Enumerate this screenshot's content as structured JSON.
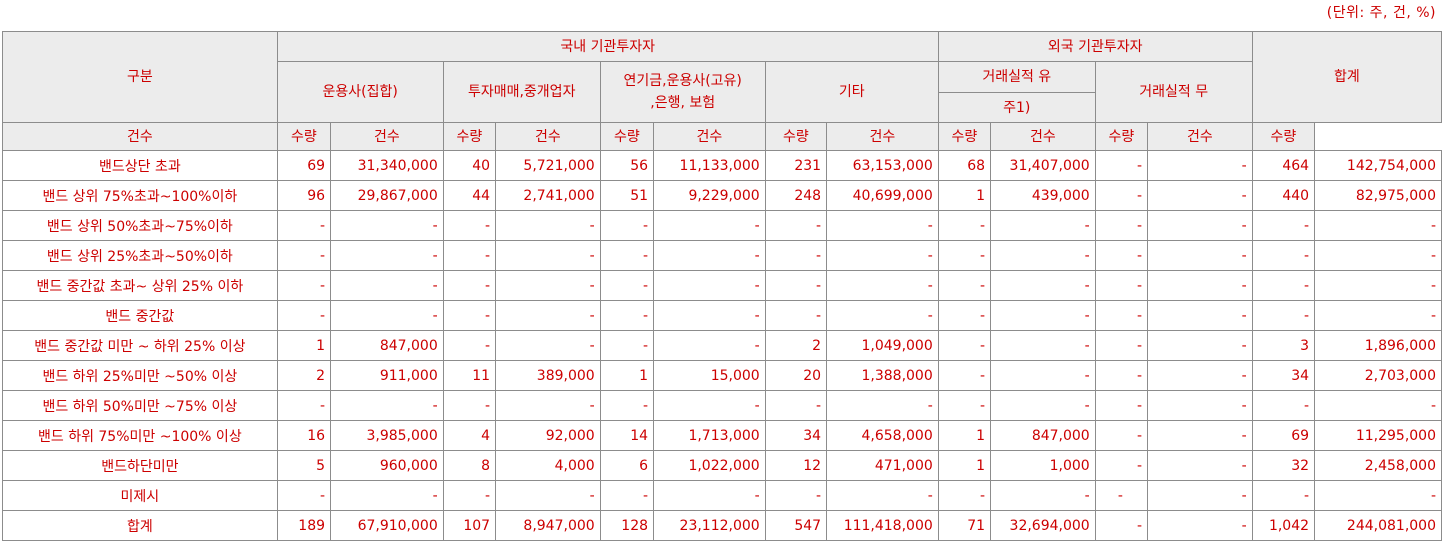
{
  "unit_note": "(단위: 주, 건, %)",
  "headers": {
    "category": "구분",
    "domestic": "국내 기관투자자",
    "foreign": "외국 기관투자자",
    "total": "합계",
    "asset_mgmt": "운용사(집합)",
    "dealers": "투자매매,중개업자",
    "pension_line1": "연기금,운용사(고유)",
    "pension_line2": ",은행, 보험",
    "etc": "기타",
    "track_yes_line1": "거래실적 유",
    "track_yes_line2": "주1)",
    "track_no": "거래실적 무",
    "count": "건수",
    "qty": "수량"
  },
  "rows": [
    {
      "label": "밴드상단 초과",
      "v": [
        "69",
        "31,340,000",
        "40",
        "5,721,000",
        "56",
        "11,133,000",
        "231",
        "63,153,000",
        "68",
        "31,407,000",
        "-",
        "-",
        "464",
        "142,754,000"
      ]
    },
    {
      "label": "밴드 상위 75%초과~100%이하",
      "v": [
        "96",
        "29,867,000",
        "44",
        "2,741,000",
        "51",
        "9,229,000",
        "248",
        "40,699,000",
        "1",
        "439,000",
        "-",
        "-",
        "440",
        "82,975,000"
      ]
    },
    {
      "label": "밴드 상위 50%초과~75%이하",
      "v": [
        "-",
        "-",
        "-",
        "-",
        "-",
        "-",
        "-",
        "-",
        "-",
        "-",
        "-",
        "-",
        "-",
        "-"
      ]
    },
    {
      "label": "밴드 상위 25%초과~50%이하",
      "v": [
        "-",
        "-",
        "-",
        "-",
        "-",
        "-",
        "-",
        "-",
        "-",
        "-",
        "-",
        "-",
        "-",
        "-"
      ]
    },
    {
      "label": "밴드 중간값 초과~ 상위 25% 이하",
      "v": [
        "-",
        "-",
        "-",
        "-",
        "-",
        "-",
        "-",
        "-",
        "-",
        "-",
        "-",
        "-",
        "-",
        "-"
      ]
    },
    {
      "label": "밴드 중간값",
      "v": [
        "-",
        "-",
        "-",
        "-",
        "-",
        "-",
        "-",
        "-",
        "-",
        "-",
        "-",
        "-",
        "-",
        "-"
      ]
    },
    {
      "label": "밴드 중간값 미만 ~ 하위 25% 이상",
      "v": [
        "1",
        "847,000",
        "-",
        "-",
        "-",
        "-",
        "2",
        "1,049,000",
        "-",
        "-",
        "-",
        "-",
        "3",
        "1,896,000"
      ]
    },
    {
      "label": "밴드 하위 25%미만 ~50% 이상",
      "v": [
        "2",
        "911,000",
        "11",
        "389,000",
        "1",
        "15,000",
        "20",
        "1,388,000",
        "-",
        "-",
        "-",
        "-",
        "34",
        "2,703,000"
      ]
    },
    {
      "label": "밴드 하위 50%미만 ~75% 이상",
      "v": [
        "-",
        "-",
        "-",
        "-",
        "-",
        "-",
        "-",
        "-",
        "-",
        "-",
        "-",
        "-",
        "-",
        "-"
      ]
    },
    {
      "label": "밴드 하위 75%미만 ~100% 이상",
      "v": [
        "16",
        "3,985,000",
        "4",
        "92,000",
        "14",
        "1,713,000",
        "34",
        "4,658,000",
        "1",
        "847,000",
        "-",
        "-",
        "69",
        "11,295,000"
      ]
    },
    {
      "label": "밴드하단미만",
      "v": [
        "5",
        "960,000",
        "8",
        "4,000",
        "6",
        "1,022,000",
        "12",
        "471,000",
        "1",
        "1,000",
        "-",
        "-",
        "32",
        "2,458,000"
      ]
    },
    {
      "label": "미제시",
      "v": [
        "-",
        "-",
        "-",
        "-",
        "-",
        "-",
        "-",
        "-",
        "-",
        "-",
        "-",
        "-",
        "-",
        "-"
      ]
    },
    {
      "label": "합계",
      "v": [
        "189",
        "67,910,000",
        "107",
        "8,947,000",
        "128",
        "23,112,000",
        "547",
        "111,418,000",
        "71",
        "32,694,000",
        "-",
        "-",
        "1,042",
        "244,081,000"
      ]
    }
  ]
}
